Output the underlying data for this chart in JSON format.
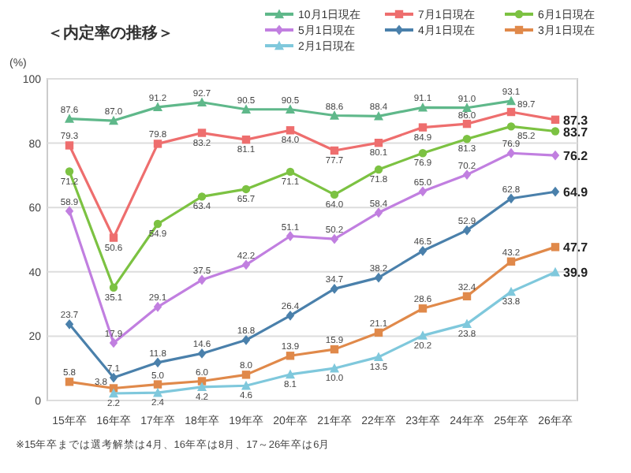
{
  "chart_data": {
    "type": "line",
    "title": "＜内定率の推移＞",
    "ylabel": "(%)",
    "categories": [
      "15年卒",
      "16年卒",
      "17年卒",
      "18年卒",
      "19年卒",
      "20年卒",
      "21年卒",
      "22年卒",
      "23年卒",
      "24年卒",
      "25年卒",
      "26年卒"
    ],
    "series": [
      {
        "name": "10月1日現在",
        "color": "#5fb88a",
        "marker": "triangle",
        "values": [
          87.6,
          87.0,
          91.2,
          92.7,
          90.5,
          90.5,
          88.6,
          88.4,
          91.1,
          91.0,
          93.1,
          null
        ],
        "value_labels": [
          "87.6",
          "87.0",
          "91.2",
          "92.7",
          "90.5",
          "90.5",
          "88.6",
          "88.4",
          "91.1",
          "91.0",
          "93.1",
          null
        ]
      },
      {
        "name": "7月1日現在",
        "color": "#ee6e6e",
        "marker": "square",
        "values": [
          79.3,
          50.6,
          79.8,
          83.2,
          81.1,
          84.0,
          77.7,
          80.1,
          84.9,
          86.0,
          89.7,
          87.3
        ],
        "value_labels": [
          "79.3",
          "50.6",
          "79.8",
          "83.2",
          "81.1",
          "84.0",
          "77.7",
          "80.1",
          "84.9",
          "86.0",
          "89.7",
          "87.3"
        ]
      },
      {
        "name": "6月1日現在",
        "color": "#7cc242",
        "marker": "circle",
        "values": [
          71.2,
          35.1,
          54.9,
          63.4,
          65.7,
          71.1,
          64.0,
          71.8,
          76.9,
          81.3,
          85.2,
          83.7
        ],
        "value_labels": [
          "71.2",
          "35.1",
          "54.9",
          "63.4",
          "65.7",
          "71.1",
          "64.0",
          "71.8",
          "76.9",
          "81.3",
          "85.2",
          "83.7"
        ]
      },
      {
        "name": "5月1日現在",
        "color": "#c17fe0",
        "marker": "diamond",
        "values": [
          58.9,
          17.9,
          29.1,
          37.5,
          42.2,
          51.1,
          50.2,
          58.4,
          65.0,
          70.2,
          76.9,
          76.2
        ],
        "value_labels": [
          "58.9",
          "17.9",
          "29.1",
          "37.5",
          "42.2",
          "51.1",
          "50.2",
          "58.4",
          "65.0",
          "70.2",
          "76.9",
          "76.2"
        ]
      },
      {
        "name": "4月1日現在",
        "color": "#4a80ab",
        "marker": "diamond",
        "values": [
          23.7,
          7.1,
          11.8,
          14.6,
          18.8,
          26.4,
          34.7,
          38.2,
          46.5,
          52.9,
          62.8,
          64.9
        ],
        "value_labels": [
          "23.7",
          "7.1",
          "11.8",
          "14.6",
          "18.8",
          "26.4",
          "34.7",
          "38.2",
          "46.5",
          "52.9",
          "62.8",
          "64.9"
        ]
      },
      {
        "name": "3月1日現在",
        "color": "#e0894a",
        "marker": "square",
        "values": [
          5.8,
          3.8,
          5.0,
          6.0,
          8.0,
          13.9,
          15.9,
          21.1,
          28.6,
          32.4,
          43.2,
          47.7
        ],
        "value_labels": [
          "5.8",
          "3.8",
          "5.0",
          "6.0",
          "8.0",
          "13.9",
          "15.9",
          "21.1",
          "28.6",
          "32.4",
          "43.2",
          "47.7"
        ]
      },
      {
        "name": "2月1日現在",
        "color": "#7fc8dc",
        "marker": "triangle",
        "values": [
          null,
          2.2,
          2.4,
          4.2,
          4.6,
          8.1,
          10.0,
          13.5,
          20.2,
          23.8,
          33.8,
          39.9
        ],
        "value_labels": [
          null,
          "2.2",
          "2.4",
          "4.2",
          "4.6",
          "8.1",
          "10.0",
          "13.5",
          "20.2",
          "23.8",
          "33.8",
          "39.9"
        ]
      }
    ],
    "ylim": [
      0,
      100
    ],
    "yticks": [
      0,
      20,
      40,
      60,
      80,
      100
    ],
    "grid": "y",
    "legend": "top right",
    "annotations": [
      "※15年卒までは選考解禁は4月、16年卒は8月、17～26年卒は6月"
    ]
  }
}
